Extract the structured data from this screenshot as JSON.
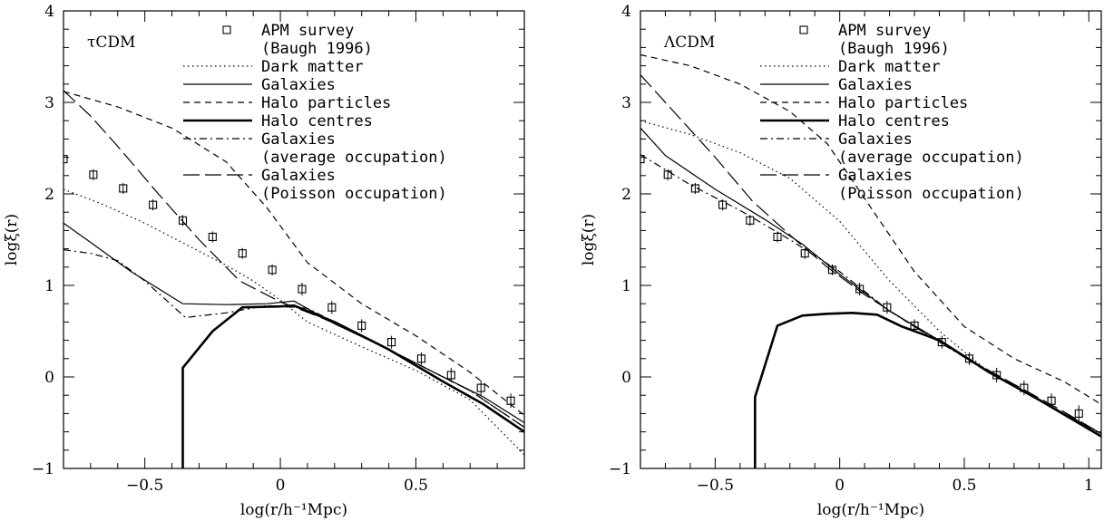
{
  "chart_data": [
    {
      "type": "line",
      "panel_label": "τCDM",
      "xlabel": "log(r/h⁻¹Mpc)",
      "ylabel": "logξ(r)",
      "xlim": [
        -0.8,
        0.9
      ],
      "ylim": [
        -1,
        4
      ],
      "xticks": [
        -0.5,
        0,
        0.5
      ],
      "xtick_labels": [
        "−0.5",
        "0",
        "0.5"
      ],
      "yticks": [
        -1,
        0,
        1,
        2,
        3,
        4
      ],
      "ytick_labels": [
        "−1",
        "0",
        "1",
        "2",
        "3",
        "4"
      ],
      "legend_position": "top-right",
      "apm": {
        "label_lines": [
          "APM survey",
          "(Baugh 1996)"
        ],
        "points": [
          [
            -0.8,
            2.38
          ],
          [
            -0.69,
            2.21
          ],
          [
            -0.58,
            2.06
          ],
          [
            -0.47,
            1.88
          ],
          [
            -0.36,
            1.71
          ],
          [
            -0.25,
            1.53
          ],
          [
            -0.14,
            1.35
          ],
          [
            -0.03,
            1.17
          ],
          [
            0.08,
            0.96
          ],
          [
            0.19,
            0.76
          ],
          [
            0.3,
            0.56
          ],
          [
            0.41,
            0.38
          ],
          [
            0.52,
            0.2
          ],
          [
            0.63,
            0.02
          ],
          [
            0.74,
            -0.12
          ],
          [
            0.85,
            -0.26
          ]
        ],
        "errors": [
          0.03,
          0.03,
          0.03,
          0.03,
          0.03,
          0.03,
          0.03,
          0.03,
          0.04,
          0.04,
          0.04,
          0.04,
          0.04,
          0.05,
          0.05,
          0.05
        ]
      },
      "series": [
        {
          "name": "Dark matter",
          "style": "dotted",
          "points": [
            [
              -0.8,
              2.05
            ],
            [
              -0.65,
              1.88
            ],
            [
              -0.5,
              1.68
            ],
            [
              -0.35,
              1.45
            ],
            [
              -0.2,
              1.22
            ],
            [
              -0.1,
              1.05
            ],
            [
              0,
              0.84
            ],
            [
              0.1,
              0.6
            ],
            [
              0.3,
              0.33
            ],
            [
              0.5,
              0.07
            ],
            [
              0.7,
              -0.25
            ],
            [
              0.9,
              -0.85
            ]
          ]
        },
        {
          "name": "Galaxies",
          "style": "solid",
          "points": [
            [
              -0.8,
              1.68
            ],
            [
              -0.7,
              1.47
            ],
            [
              -0.55,
              1.15
            ],
            [
              -0.36,
              0.8
            ],
            [
              -0.2,
              0.79
            ],
            [
              -0.05,
              0.8
            ],
            [
              0.05,
              0.83
            ],
            [
              0.2,
              0.58
            ],
            [
              0.4,
              0.3
            ],
            [
              0.6,
              0.0
            ],
            [
              0.75,
              -0.22
            ],
            [
              0.9,
              -0.5
            ]
          ]
        },
        {
          "name": "Halo particles",
          "style": "dashed",
          "points": [
            [
              -0.8,
              3.12
            ],
            [
              -0.6,
              2.95
            ],
            [
              -0.4,
              2.72
            ],
            [
              -0.2,
              2.35
            ],
            [
              -0.05,
              1.85
            ],
            [
              0.1,
              1.25
            ],
            [
              0.3,
              0.8
            ],
            [
              0.5,
              0.45
            ],
            [
              0.7,
              0.05
            ],
            [
              0.9,
              -0.42
            ]
          ]
        },
        {
          "name": "Halo centres",
          "style": "thick",
          "points": [
            [
              -0.36,
              -1.0
            ],
            [
              -0.36,
              0.1
            ],
            [
              -0.25,
              0.5
            ],
            [
              -0.14,
              0.76
            ],
            [
              0,
              0.77
            ],
            [
              0.05,
              0.78
            ],
            [
              0.2,
              0.6
            ],
            [
              0.4,
              0.3
            ],
            [
              0.6,
              -0.05
            ],
            [
              0.75,
              -0.3
            ],
            [
              0.9,
              -0.6
            ]
          ]
        },
        {
          "name": "Galaxies (average occupation)",
          "style": "dashdot",
          "points": [
            [
              -0.8,
              1.39
            ],
            [
              -0.7,
              1.35
            ],
            [
              -0.6,
              1.27
            ],
            [
              -0.5,
              1.05
            ],
            [
              -0.35,
              0.65
            ],
            [
              -0.2,
              0.7
            ],
            [
              -0.05,
              0.78
            ],
            [
              0.1,
              0.75
            ],
            [
              0.3,
              0.45
            ],
            [
              0.5,
              0.15
            ],
            [
              0.7,
              -0.15
            ],
            [
              0.9,
              -0.55
            ]
          ]
        },
        {
          "name": "Galaxies (Poisson occupation)",
          "style": "longdash",
          "points": [
            [
              -0.8,
              3.13
            ],
            [
              -0.7,
              2.85
            ],
            [
              -0.6,
              2.52
            ],
            [
              -0.45,
              2.0
            ],
            [
              -0.3,
              1.5
            ],
            [
              -0.15,
              1.05
            ],
            [
              0,
              0.82
            ],
            [
              0.15,
              0.65
            ],
            [
              0.3,
              0.45
            ],
            [
              0.5,
              0.15
            ],
            [
              0.7,
              -0.15
            ],
            [
              0.9,
              -0.55
            ]
          ]
        }
      ],
      "legend_lines": {
        "dark_matter": [
          "Dark matter"
        ],
        "galaxies": [
          "Galaxies"
        ],
        "halo_particles": [
          "Halo particles"
        ],
        "halo_centres": [
          "Halo centres"
        ],
        "galaxies_avg": [
          "Galaxies",
          "(average occupation)"
        ],
        "galaxies_poisson": [
          "Galaxies",
          "(Poisson occupation)"
        ]
      }
    },
    {
      "type": "line",
      "panel_label": "ΛCDM",
      "xlabel": "log(r/h⁻¹Mpc)",
      "ylabel": "logξ(r)",
      "xlim": [
        -0.8,
        1.05
      ],
      "ylim": [
        -1,
        4
      ],
      "xticks": [
        -0.5,
        0,
        0.5,
        1
      ],
      "xtick_labels": [
        "−0.5",
        "0",
        "0.5",
        "1"
      ],
      "yticks": [
        -1,
        0,
        1,
        2,
        3,
        4
      ],
      "ytick_labels": [
        "−1",
        "0",
        "1",
        "2",
        "3",
        "4"
      ],
      "legend_position": "top-right",
      "apm": {
        "label_lines": [
          "APM survey",
          "(Baugh 1996)"
        ],
        "points": [
          [
            -0.8,
            2.38
          ],
          [
            -0.69,
            2.21
          ],
          [
            -0.58,
            2.06
          ],
          [
            -0.47,
            1.88
          ],
          [
            -0.36,
            1.71
          ],
          [
            -0.25,
            1.53
          ],
          [
            -0.14,
            1.35
          ],
          [
            -0.03,
            1.17
          ],
          [
            0.08,
            0.96
          ],
          [
            0.19,
            0.76
          ],
          [
            0.3,
            0.56
          ],
          [
            0.41,
            0.38
          ],
          [
            0.52,
            0.2
          ],
          [
            0.63,
            0.02
          ],
          [
            0.74,
            -0.12
          ],
          [
            0.85,
            -0.26
          ],
          [
            0.96,
            -0.4
          ]
        ],
        "errors": [
          0.03,
          0.03,
          0.03,
          0.03,
          0.03,
          0.03,
          0.03,
          0.03,
          0.04,
          0.04,
          0.04,
          0.04,
          0.04,
          0.05,
          0.05,
          0.05,
          0.06
        ]
      },
      "series": [
        {
          "name": "Dark matter",
          "style": "dotted",
          "points": [
            [
              -0.8,
              2.8
            ],
            [
              -0.6,
              2.65
            ],
            [
              -0.4,
              2.45
            ],
            [
              -0.2,
              2.17
            ],
            [
              0,
              1.7
            ],
            [
              0.2,
              1.05
            ],
            [
              0.4,
              0.5
            ],
            [
              0.6,
              0.05
            ],
            [
              0.8,
              -0.25
            ],
            [
              1.05,
              -0.62
            ]
          ]
        },
        {
          "name": "Galaxies",
          "style": "solid",
          "points": [
            [
              -0.8,
              2.72
            ],
            [
              -0.7,
              2.42
            ],
            [
              -0.5,
              2.05
            ],
            [
              -0.3,
              1.72
            ],
            [
              -0.15,
              1.45
            ],
            [
              0,
              1.12
            ],
            [
              0.2,
              0.72
            ],
            [
              0.4,
              0.4
            ],
            [
              0.6,
              0.05
            ],
            [
              0.8,
              -0.25
            ],
            [
              1.05,
              -0.62
            ]
          ]
        },
        {
          "name": "Halo particles",
          "style": "dashed",
          "points": [
            [
              -0.8,
              3.52
            ],
            [
              -0.6,
              3.4
            ],
            [
              -0.4,
              3.2
            ],
            [
              -0.2,
              2.9
            ],
            [
              -0.05,
              2.55
            ],
            [
              0.1,
              1.95
            ],
            [
              0.3,
              1.15
            ],
            [
              0.5,
              0.55
            ],
            [
              0.7,
              0.2
            ],
            [
              0.9,
              -0.05
            ],
            [
              1.05,
              -0.3
            ]
          ]
        },
        {
          "name": "Halo centres",
          "style": "thick",
          "points": [
            [
              -0.34,
              -1.0
            ],
            [
              -0.34,
              -0.22
            ],
            [
              -0.25,
              0.56
            ],
            [
              -0.15,
              0.67
            ],
            [
              -0.05,
              0.69
            ],
            [
              0.05,
              0.7
            ],
            [
              0.15,
              0.68
            ],
            [
              0.25,
              0.55
            ],
            [
              0.4,
              0.4
            ],
            [
              0.6,
              0.05
            ],
            [
              0.8,
              -0.25
            ],
            [
              1.05,
              -0.65
            ]
          ]
        },
        {
          "name": "Galaxies (average occupation)",
          "style": "dashdot",
          "points": [
            [
              -0.8,
              2.43
            ],
            [
              -0.6,
              2.1
            ],
            [
              -0.4,
              1.82
            ],
            [
              -0.2,
              1.5
            ],
            [
              0,
              1.15
            ],
            [
              0.2,
              0.72
            ],
            [
              0.4,
              0.38
            ],
            [
              0.6,
              0.05
            ],
            [
              0.8,
              -0.25
            ],
            [
              1.05,
              -0.62
            ]
          ]
        },
        {
          "name": "Galaxies (Poisson occupation)",
          "style": "longdash",
          "points": [
            [
              -0.8,
              3.3
            ],
            [
              -0.65,
              2.85
            ],
            [
              -0.5,
              2.4
            ],
            [
              -0.35,
              1.92
            ],
            [
              -0.2,
              1.55
            ],
            [
              -0.05,
              1.2
            ],
            [
              0.1,
              0.9
            ],
            [
              0.3,
              0.55
            ],
            [
              0.5,
              0.22
            ],
            [
              0.7,
              -0.08
            ],
            [
              0.9,
              -0.38
            ],
            [
              1.05,
              -0.62
            ]
          ]
        }
      ],
      "legend_lines": {
        "dark_matter": [
          "Dark matter"
        ],
        "galaxies": [
          "Galaxies"
        ],
        "halo_particles": [
          "Halo particles"
        ],
        "halo_centres": [
          "Halo centres"
        ],
        "galaxies_avg": [
          "Galaxies",
          "(average occupation)"
        ],
        "galaxies_poisson": [
          "Galaxies",
          "(Poisson occupation)"
        ]
      }
    }
  ]
}
